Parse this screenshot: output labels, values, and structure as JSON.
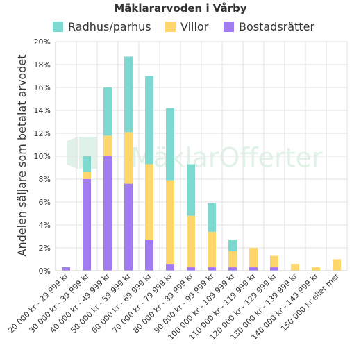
{
  "colors": {
    "Radhus/parhus": "#7dd9d0",
    "Villor": "#ffd66b",
    "Bostadsrätter": "#a07cf0"
  },
  "watermark": "MäklarOfferter",
  "chart_data": {
    "type": "bar",
    "stacked": true,
    "title": "Mäklararvoden i Vårby",
    "ylabel": "Andelen säljare som betalat arvodet",
    "xlabel": "",
    "ylim": [
      0,
      20
    ],
    "yticks": [
      "0%",
      "2%",
      "4%",
      "6%",
      "8%",
      "10%",
      "12%",
      "14%",
      "16%",
      "18%",
      "20%"
    ],
    "grid": true,
    "legend_position": "top",
    "categories": [
      "20 000 kr - 29 999 kr",
      "30 000 kr - 39 999 kr",
      "40 000 kr - 49 999 kr",
      "50 000 kr - 59 999 kr",
      "60 000 kr - 69 999 kr",
      "70 000 kr - 79 999 kr",
      "80 000 kr - 89 999 kr",
      "90 000 kr - 99 999 kr",
      "100 000 kr - 109 999 kr",
      "110 000 kr - 119 999 kr",
      "120 000 kr - 129 999 kr",
      "130 000 kr - 139 999 kr",
      "140 000 kr - 149 999 kr",
      "150 000 kr eller mer"
    ],
    "series": [
      {
        "name": "Bostadsrätter",
        "values": [
          0.3,
          8.0,
          10.0,
          7.6,
          2.7,
          0.6,
          0.3,
          0.3,
          0.3,
          0.3,
          0.3,
          0.0,
          0.0,
          0.0
        ]
      },
      {
        "name": "Villor",
        "values": [
          0.0,
          0.6,
          1.8,
          4.5,
          6.6,
          7.3,
          4.5,
          3.1,
          1.4,
          1.7,
          1.0,
          0.6,
          0.3,
          1.0
        ]
      },
      {
        "name": "Radhus/parhus",
        "values": [
          0.0,
          1.4,
          4.2,
          6.6,
          7.7,
          6.3,
          4.5,
          2.5,
          1.0,
          0.0,
          0.0,
          0.0,
          0.0,
          0.0
        ]
      }
    ],
    "legend_order": [
      "Radhus/parhus",
      "Villor",
      "Bostadsrätter"
    ]
  }
}
